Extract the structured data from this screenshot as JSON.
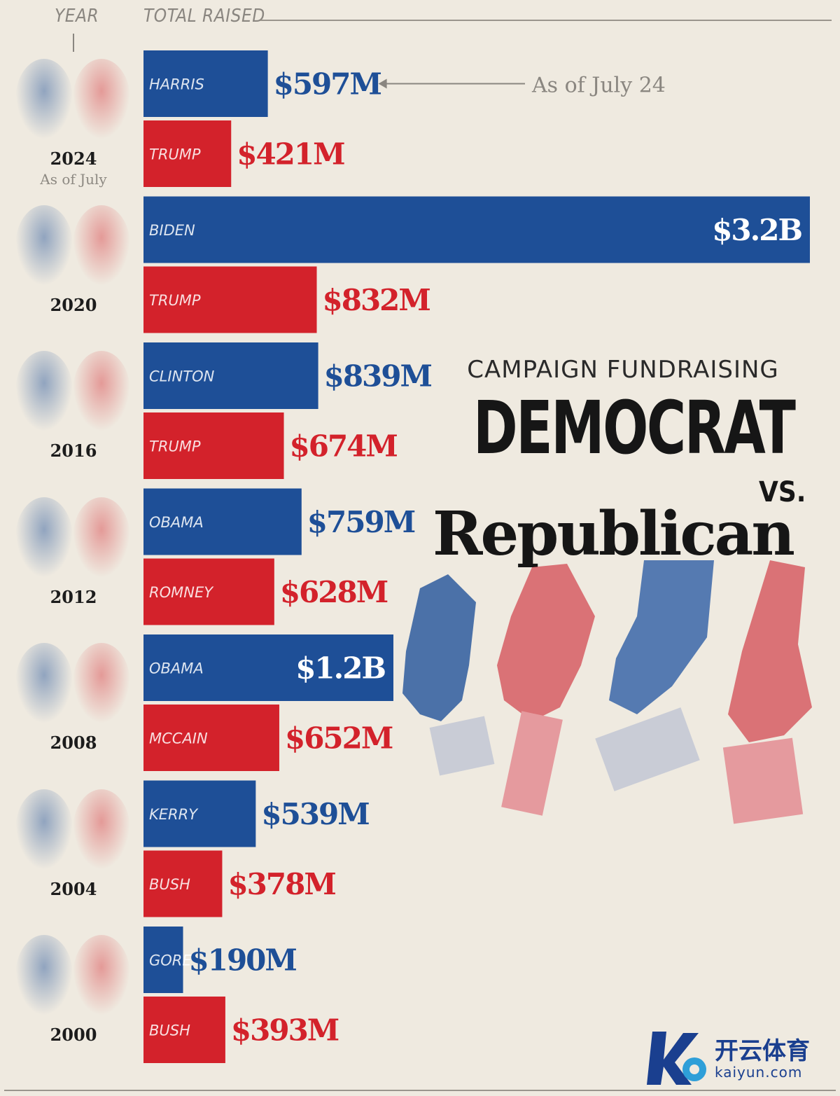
{
  "header": {
    "year_label": "YEAR",
    "total_label": "TOTAL RAISED"
  },
  "title": {
    "small": "CAMPAIGN FUNDRAISING",
    "dem": "DEMOCRAT",
    "vs": "VS.",
    "rep": "Republican"
  },
  "annotations": {
    "harris_note": "As of July 24",
    "year_2024_note": "As of July"
  },
  "colors": {
    "democrat": "#1e4f97",
    "republican": "#d3222b"
  },
  "chart_data": {
    "type": "bar",
    "orientation": "horizontal",
    "unit": "USD millions",
    "xlim": [
      0,
      3200
    ],
    "elections": [
      {
        "year": "2024",
        "dem": {
          "name": "HARRIS",
          "value": 597,
          "label": "$597M"
        },
        "rep": {
          "name": "TRUMP",
          "value": 421,
          "label": "$421M"
        }
      },
      {
        "year": "2020",
        "dem": {
          "name": "BIDEN",
          "value": 3200,
          "label": "$3.2B"
        },
        "rep": {
          "name": "TRUMP",
          "value": 832,
          "label": "$832M"
        }
      },
      {
        "year": "2016",
        "dem": {
          "name": "CLINTON",
          "value": 839,
          "label": "$839M"
        },
        "rep": {
          "name": "TRUMP",
          "value": 674,
          "label": "$674M"
        }
      },
      {
        "year": "2012",
        "dem": {
          "name": "OBAMA",
          "value": 759,
          "label": "$759M"
        },
        "rep": {
          "name": "ROMNEY",
          "value": 628,
          "label": "$628M"
        }
      },
      {
        "year": "2008",
        "dem": {
          "name": "OBAMA",
          "value": 1200,
          "label": "$1.2B"
        },
        "rep": {
          "name": "MCCAIN",
          "value": 652,
          "label": "$652M"
        }
      },
      {
        "year": "2004",
        "dem": {
          "name": "KERRY",
          "value": 539,
          "label": "$539M"
        },
        "rep": {
          "name": "BUSH",
          "value": 378,
          "label": "$378M"
        }
      },
      {
        "year": "2000",
        "dem": {
          "name": "GORE",
          "value": 190,
          "label": "$190M"
        },
        "rep": {
          "name": "BUSH",
          "value": 393,
          "label": "$393M"
        }
      }
    ]
  },
  "watermark": {
    "text": "开云体育",
    "url": "kaiyun.com"
  }
}
